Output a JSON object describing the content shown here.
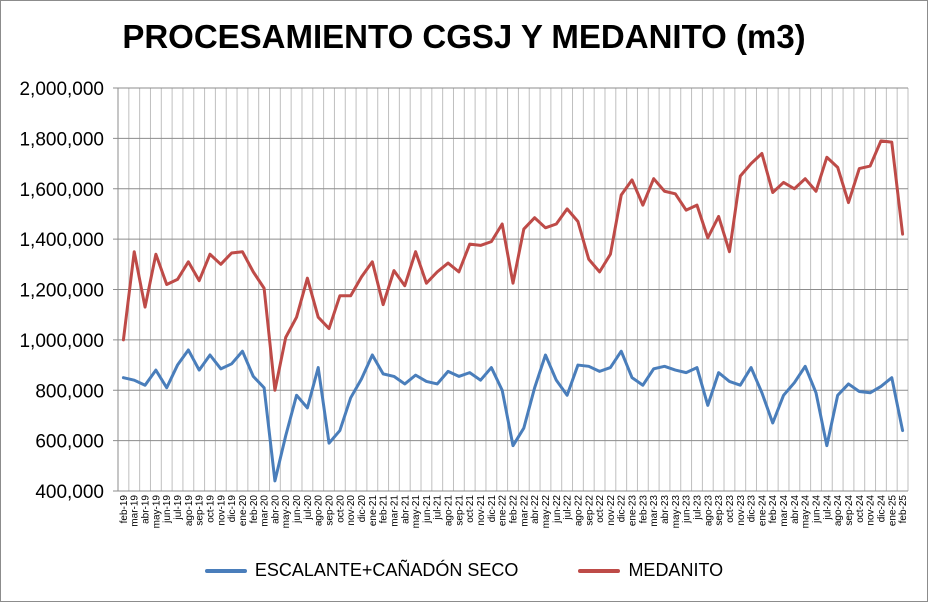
{
  "chart_data": {
    "type": "line",
    "title": "PROCESAMIENTO CGSJ Y MEDANITO (m3)",
    "xlabel": "",
    "ylabel": "",
    "ylim": [
      400000,
      2000000
    ],
    "yticks": [
      400000,
      600000,
      800000,
      1000000,
      1200000,
      1400000,
      1600000,
      1800000,
      2000000
    ],
    "ytick_labels": [
      "400,000",
      "600,000",
      "800,000",
      "1,000,000",
      "1,200,000",
      "1,400,000",
      "1,600,000",
      "1,800,000",
      "2,000,000"
    ],
    "grid": "horizontal and vertical",
    "legend_position": "bottom",
    "categories": [
      "feb-19",
      "mar-19",
      "abr-19",
      "may-19",
      "jun-19",
      "jul-19",
      "ago-19",
      "sep-19",
      "oct-19",
      "nov-19",
      "dic-19",
      "ene-20",
      "feb-20",
      "mar-20",
      "abr-20",
      "may-20",
      "jun-20",
      "jul-20",
      "ago-20",
      "sep-20",
      "oct-20",
      "nov-20",
      "dic-20",
      "ene-21",
      "feb-21",
      "mar-21",
      "abr-21",
      "may-21",
      "jun-21",
      "jul-21",
      "ago-21",
      "sep-21",
      "oct-21",
      "nov-21",
      "dic-21",
      "ene-22",
      "feb-22",
      "mar-22",
      "abr-22",
      "may-22",
      "jun-22",
      "jul-22",
      "ago-22",
      "sep-22",
      "oct-22",
      "nov-22",
      "dic-22",
      "ene-23",
      "feb-23",
      "mar-23",
      "abr-23",
      "may-23",
      "jun-23",
      "jul-23",
      "ago-23",
      "sep-23",
      "oct-23",
      "nov-23",
      "dic-23",
      "ene-24",
      "feb-24",
      "mar-24",
      "abr-24",
      "may-24",
      "jun-24",
      "jul-24",
      "ago-24",
      "sep-24",
      "oct-24",
      "nov-24",
      "dic-24",
      "ene-25",
      "feb-25"
    ],
    "series": [
      {
        "name": "ESCALANTE+CAÑADÓN SECO",
        "color": "#4a7ebb",
        "values": [
          850000,
          840000,
          820000,
          880000,
          810000,
          900000,
          960000,
          880000,
          940000,
          885000,
          905000,
          955000,
          855000,
          810000,
          440000,
          620000,
          780000,
          730000,
          890000,
          590000,
          640000,
          770000,
          845000,
          940000,
          865000,
          855000,
          825000,
          860000,
          835000,
          825000,
          875000,
          855000,
          870000,
          840000,
          890000,
          800000,
          580000,
          650000,
          810000,
          940000,
          840000,
          780000,
          900000,
          895000,
          875000,
          890000,
          955000,
          850000,
          820000,
          885000,
          895000,
          880000,
          870000,
          890000,
          740000,
          870000,
          835000,
          820000,
          890000,
          790000,
          670000,
          780000,
          830000,
          895000,
          790000,
          580000,
          780000,
          825000,
          795000,
          790000,
          815000,
          850000,
          640000
        ]
      },
      {
        "name": "MEDANITO",
        "color": "#be4b48",
        "values": [
          1000000,
          1350000,
          1130000,
          1340000,
          1220000,
          1240000,
          1310000,
          1235000,
          1340000,
          1300000,
          1345000,
          1350000,
          1270000,
          1205000,
          800000,
          1010000,
          1090000,
          1245000,
          1090000,
          1045000,
          1175000,
          1175000,
          1250000,
          1310000,
          1140000,
          1275000,
          1215000,
          1350000,
          1225000,
          1270000,
          1305000,
          1270000,
          1380000,
          1375000,
          1390000,
          1460000,
          1225000,
          1440000,
          1485000,
          1445000,
          1460000,
          1520000,
          1470000,
          1320000,
          1270000,
          1340000,
          1575000,
          1635000,
          1535000,
          1640000,
          1590000,
          1580000,
          1515000,
          1535000,
          1405000,
          1490000,
          1350000,
          1650000,
          1700000,
          1740000,
          1585000,
          1625000,
          1600000,
          1640000,
          1590000,
          1725000,
          1685000,
          1545000,
          1680000,
          1690000,
          1790000,
          1785000,
          1420000
        ]
      }
    ]
  }
}
